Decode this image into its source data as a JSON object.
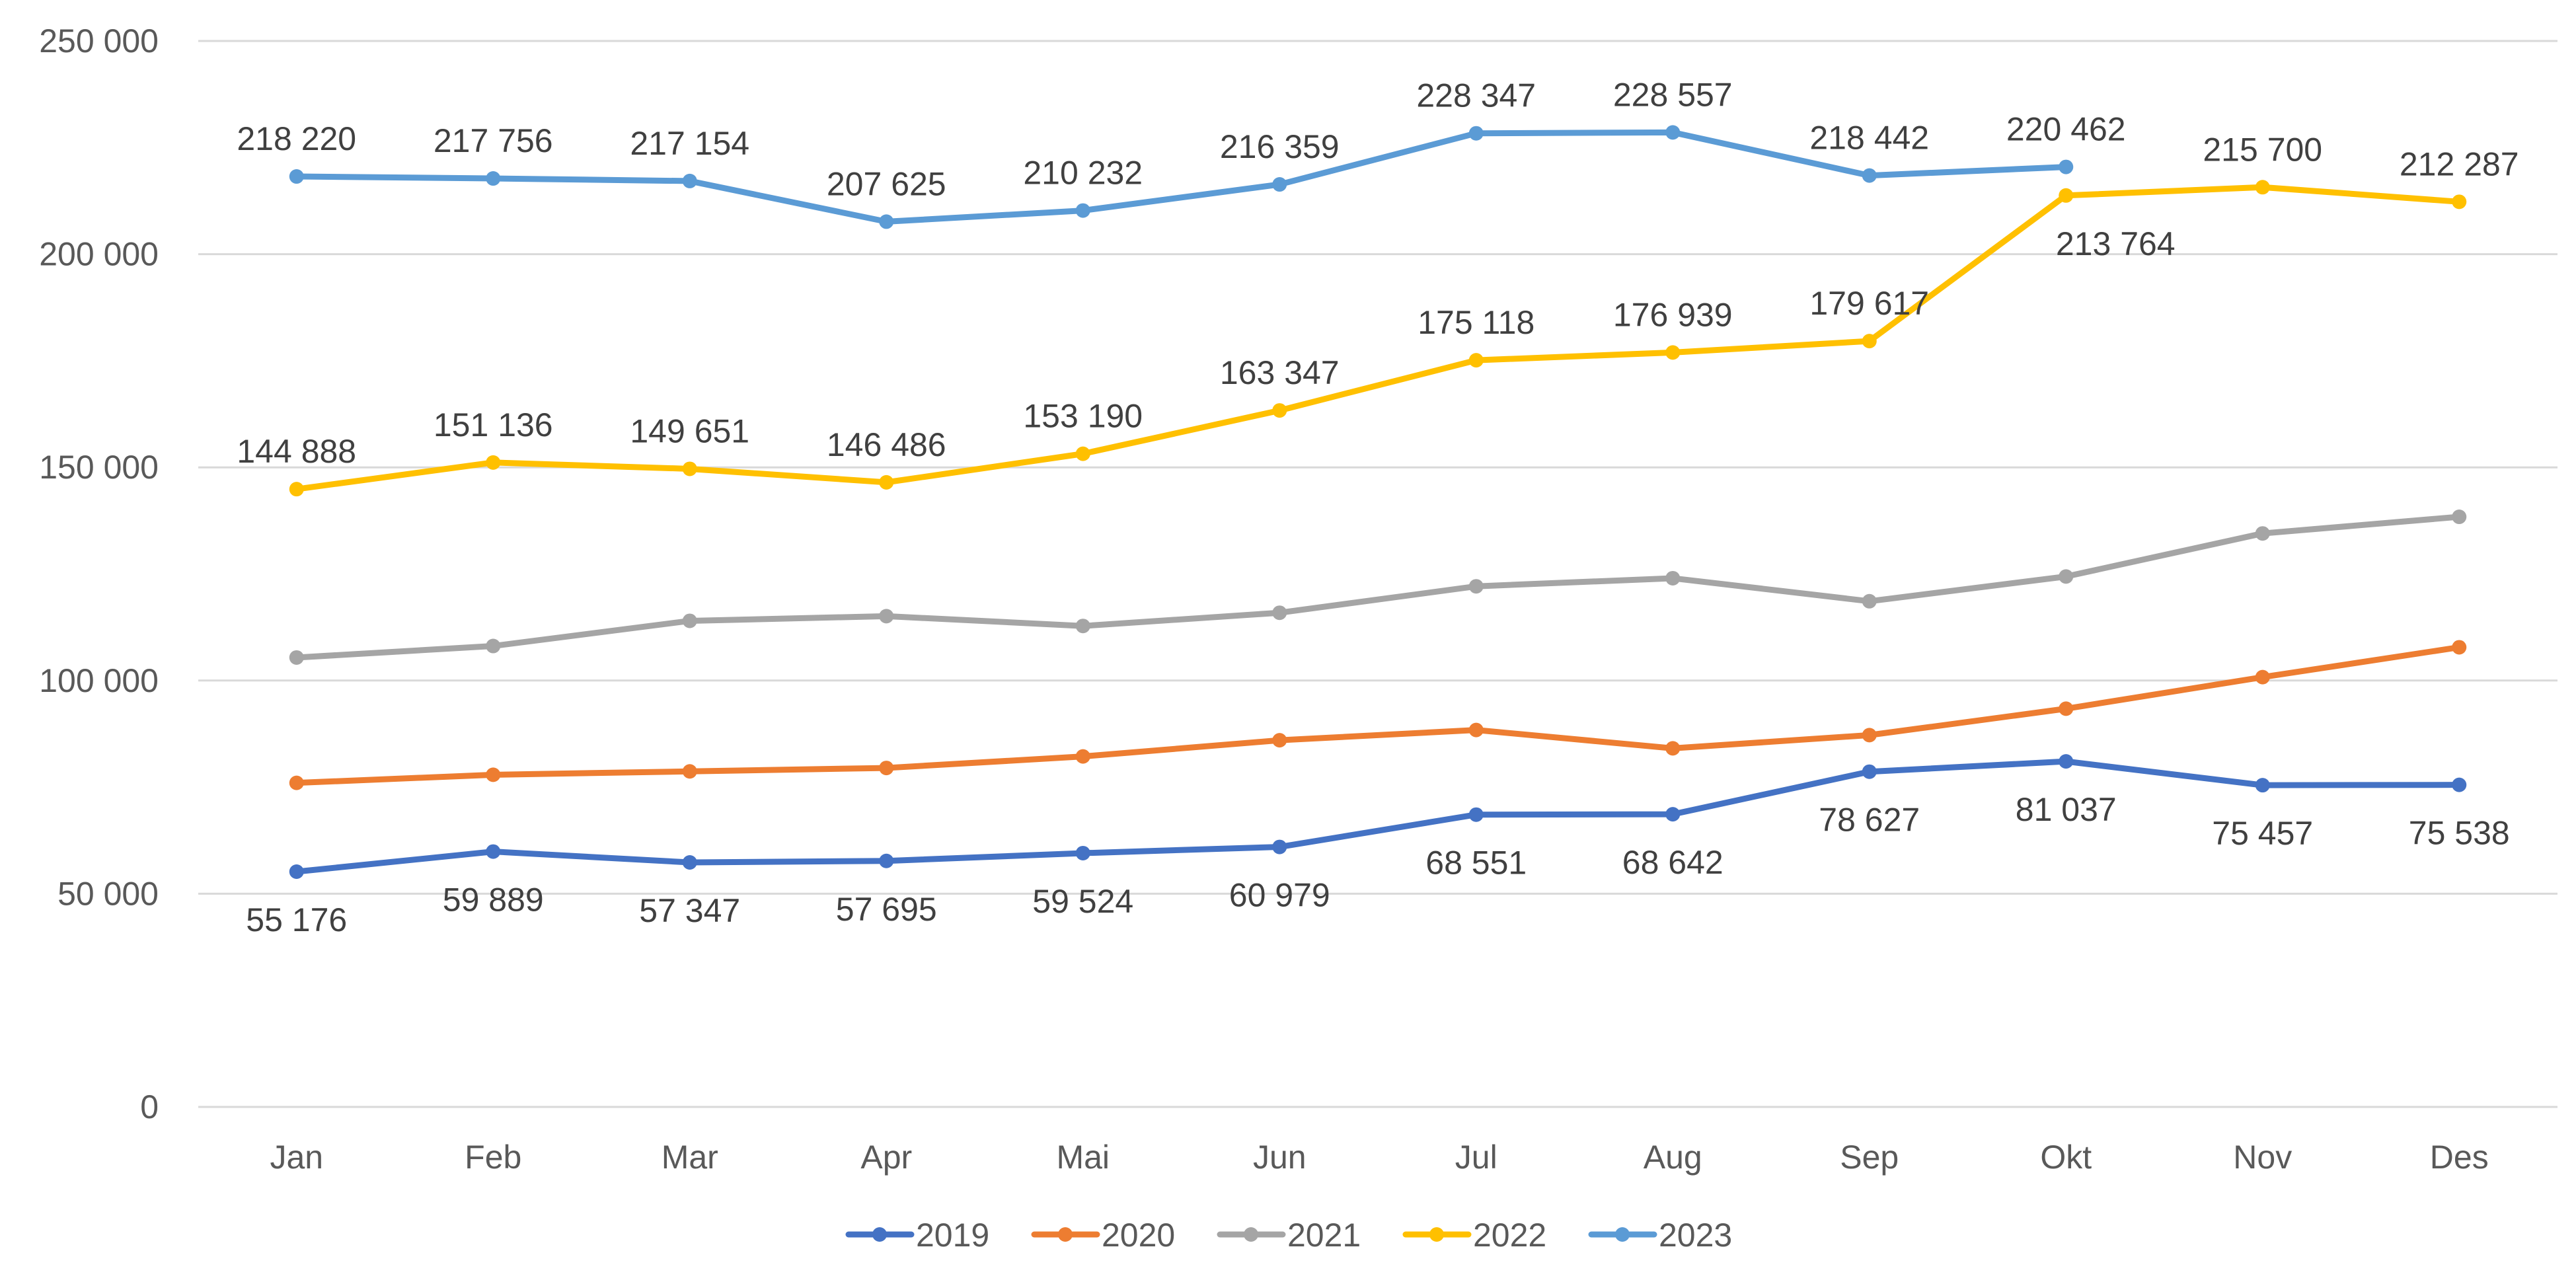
{
  "chart_data": {
    "type": "line",
    "title": "",
    "xlabel": "",
    "ylabel": "",
    "ylim": [
      0,
      250000
    ],
    "yticks": [
      0,
      50000,
      100000,
      150000,
      200000,
      250000
    ],
    "ytick_labels": [
      "0",
      "50 000",
      "100 000",
      "150 000",
      "200 000",
      "250 000"
    ],
    "grid": true,
    "legend_position": "bottom",
    "categories": [
      "Jan",
      "Feb",
      "Mar",
      "Apr",
      "Mai",
      "Jun",
      "Jul",
      "Aug",
      "Sep",
      "Okt",
      "Nov",
      "Des"
    ],
    "series": [
      {
        "name": "2019",
        "color": "#4472C4",
        "show_labels": true,
        "values": [
          55176,
          59889,
          57347,
          57695,
          59524,
          60979,
          68551,
          68642,
          78627,
          81037,
          75457,
          75538
        ],
        "labels": [
          "55 176",
          "59 889",
          "57 347",
          "57 695",
          "59 524",
          "60 979",
          "68 551",
          "68 642",
          "78 627",
          "81 037",
          "75 457",
          "75 538"
        ]
      },
      {
        "name": "2020",
        "color": "#ED7D31",
        "show_labels": false,
        "values": [
          76000,
          77900,
          78700,
          79500,
          82200,
          86000,
          88400,
          84100,
          87200,
          93400,
          100800,
          107800
        ]
      },
      {
        "name": "2021",
        "color": "#A5A5A5",
        "show_labels": false,
        "values": [
          105400,
          108100,
          114000,
          115100,
          112800,
          115900,
          122100,
          124000,
          118600,
          124400,
          134500,
          138400
        ]
      },
      {
        "name": "2022",
        "color": "#FFC000",
        "show_labels": true,
        "values": [
          144888,
          151136,
          149651,
          146486,
          153190,
          163347,
          175118,
          176939,
          179617,
          213764,
          215700,
          212287
        ],
        "labels": [
          "144 888",
          "151 136",
          "149 651",
          "146 486",
          "153 190",
          "163 347",
          "175 118",
          "176 939",
          "179 617",
          "213 764",
          "215 700",
          "212 287"
        ]
      },
      {
        "name": "2023",
        "color": "#5B9BD5",
        "show_labels": true,
        "values": [
          218220,
          217756,
          217154,
          207625,
          210232,
          216359,
          228347,
          228557,
          218442,
          220462,
          null,
          null
        ],
        "labels": [
          "218 220",
          "217 756",
          "217 154",
          "207 625",
          "210 232",
          "216 359",
          "228 347",
          "228 557",
          "218 442",
          "220 462",
          null,
          null
        ]
      }
    ]
  }
}
